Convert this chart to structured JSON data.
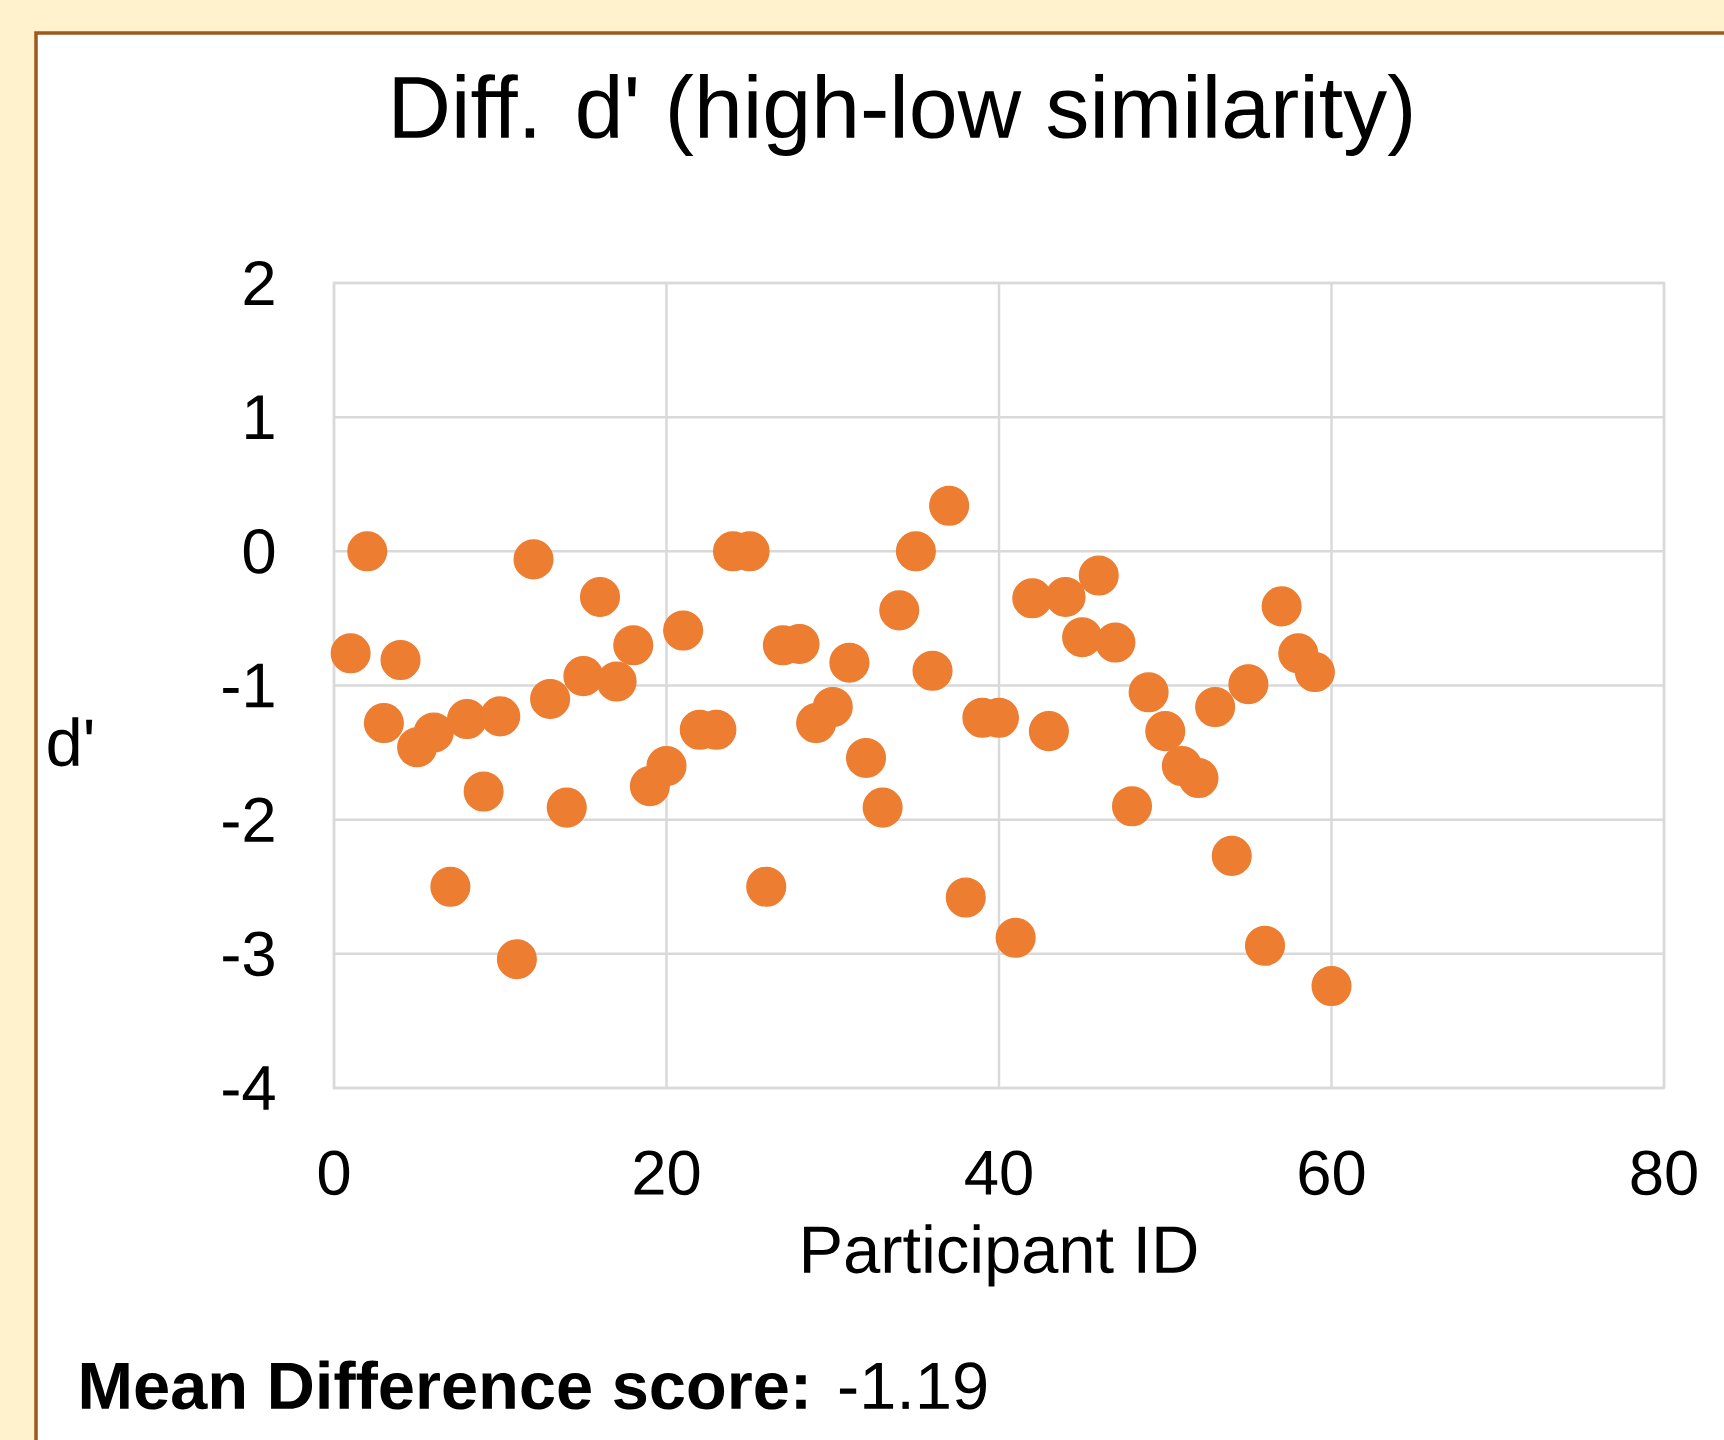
{
  "chart_data": {
    "type": "scatter",
    "title": "Diff. d' (high-low similarity)",
    "xlabel": "Participant ID",
    "ylabel": "d'",
    "x": [
      1,
      2,
      3,
      4,
      5,
      6,
      7,
      8,
      9,
      10,
      11,
      12,
      13,
      14,
      15,
      16,
      17,
      18,
      19,
      20,
      21,
      22,
      23,
      24,
      25,
      26,
      27,
      28,
      29,
      30,
      31,
      32,
      33,
      34,
      35,
      36,
      37,
      38,
      39,
      40,
      41,
      42,
      43,
      44,
      45,
      46,
      47,
      48,
      49,
      50,
      51,
      52,
      53,
      54,
      55,
      56,
      57,
      58,
      59,
      60
    ],
    "values": [
      -0.76,
      0,
      -1.28,
      -0.81,
      -1.46,
      -1.35,
      -2.5,
      -1.25,
      -1.79,
      -1.23,
      -3.04,
      -0.06,
      -1.1,
      -1.91,
      -0.93,
      -0.34,
      -0.97,
      -0.7,
      -1.75,
      -1.6,
      -0.59,
      -1.33,
      -1.33,
      0,
      0,
      -2.5,
      -0.7,
      -0.69,
      -1.28,
      -1.16,
      -0.83,
      -1.54,
      -1.91,
      -0.44,
      0,
      -0.89,
      0.34,
      -2.58,
      -1.24,
      -1.24,
      -2.88,
      -0.35,
      -1.34,
      -0.34,
      -0.64,
      -0.18,
      -0.68,
      -1.9,
      -1.05,
      -1.34,
      -1.6,
      -1.69,
      -1.16,
      -2.27,
      -0.99,
      -2.94,
      -0.41,
      -0.76,
      -0.9,
      -3.24
    ],
    "color": "#ed7d31",
    "marker": "circle",
    "grid": true,
    "xlim": [
      0,
      80
    ],
    "xticks": [
      0,
      20,
      40,
      60,
      80
    ],
    "ylim": [
      -4,
      2
    ],
    "yticks": [
      -4,
      -3,
      -2,
      -1,
      0,
      1,
      2
    ],
    "annotations": [
      "**Mean Difference score:** -1.19"
    ]
  }
}
